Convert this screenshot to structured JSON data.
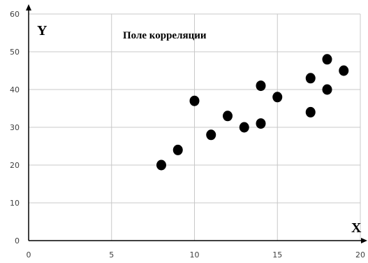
{
  "chart_data": {
    "type": "scatter",
    "title": "Поле корреляции",
    "xlabel": "X",
    "ylabel": "Y",
    "xlim": [
      0,
      20
    ],
    "ylim": [
      0,
      60
    ],
    "x_ticks": [
      0,
      5,
      10,
      15,
      20
    ],
    "y_ticks": [
      0,
      10,
      20,
      30,
      40,
      50,
      60
    ],
    "x_tick_labels": [
      "0",
      "5",
      "10",
      "15",
      "20"
    ],
    "y_tick_labels": [
      "0",
      "10",
      "20",
      "30",
      "40",
      "50",
      "60"
    ],
    "grid": true,
    "colors": {
      "points": "#000000",
      "grid": "#c8c8c8",
      "axis": "#000000"
    },
    "points": [
      {
        "x": 8,
        "y": 20
      },
      {
        "x": 9,
        "y": 24
      },
      {
        "x": 10,
        "y": 37
      },
      {
        "x": 11,
        "y": 28
      },
      {
        "x": 12,
        "y": 33
      },
      {
        "x": 13,
        "y": 30
      },
      {
        "x": 14,
        "y": 41
      },
      {
        "x": 14,
        "y": 31
      },
      {
        "x": 15,
        "y": 38
      },
      {
        "x": 17,
        "y": 43
      },
      {
        "x": 17,
        "y": 34
      },
      {
        "x": 18,
        "y": 48
      },
      {
        "x": 18,
        "y": 40
      },
      {
        "x": 19,
        "y": 45
      }
    ]
  }
}
